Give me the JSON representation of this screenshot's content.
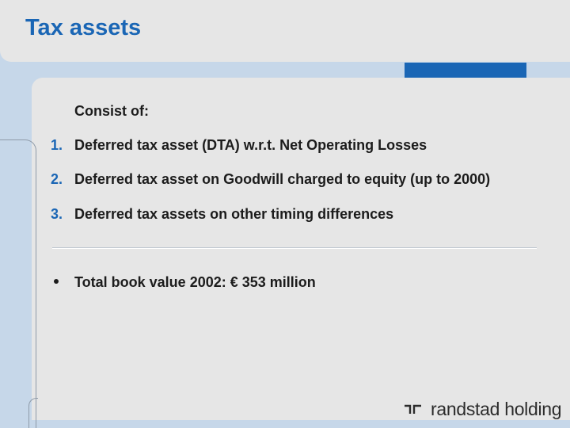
{
  "title": "Tax assets",
  "intro": "Consist of:",
  "items": [
    {
      "num": "1.",
      "text": "Deferred tax asset  (DTA) w.r.t. Net Operating Losses"
    },
    {
      "num": "2.",
      "text": "Deferred tax asset on Goodwill charged to equity (up to 2000)"
    },
    {
      "num": "3.",
      "text": "Deferred tax assets on other timing differences"
    }
  ],
  "total": "Total book value 2002: € 353 million",
  "logo": {
    "text": "randstad holding",
    "icon": "randstad-logo-icon"
  },
  "colors": {
    "accent": "#1a66b5",
    "panel": "#e6e6e6",
    "background": "#c6d7e9"
  }
}
